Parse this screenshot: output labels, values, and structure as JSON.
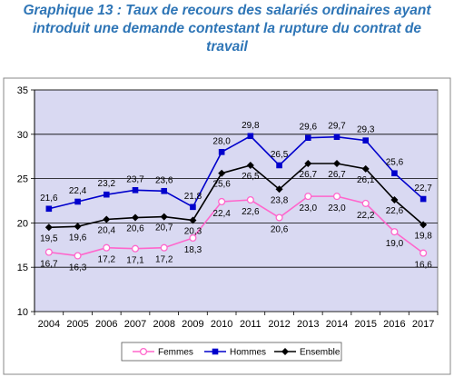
{
  "chart_data": {
    "type": "line",
    "title_lines": [
      "Graphique 13 : Taux de recours des salariés ordinaires ayant",
      "introduit une demande contestant la rupture du contrat de",
      "travail"
    ],
    "categories": [
      "2004",
      "2005",
      "2006",
      "2007",
      "2008",
      "2009",
      "2010",
      "2011",
      "2012",
      "2013",
      "2014",
      "2015",
      "2016",
      "2017"
    ],
    "ylim": [
      10,
      35
    ],
    "yticks": [
      "10",
      "15",
      "20",
      "25",
      "30",
      "35"
    ],
    "grid": true,
    "legend_position": "bottom",
    "series": [
      {
        "name": "Femmes",
        "color": "#ff66cc",
        "marker": "circle",
        "values": [
          16.7,
          16.3,
          17.2,
          17.1,
          17.2,
          18.3,
          22.4,
          22.6,
          20.6,
          23.0,
          23.0,
          22.2,
          19.0,
          16.6
        ],
        "labels": [
          "16,7",
          "16,3",
          "17,2",
          "17,1",
          "17,2",
          "18,3",
          "22,4",
          "22,6",
          "20,6",
          "23,0",
          "23,0",
          "22,2",
          "19,0",
          "16,6"
        ]
      },
      {
        "name": "Hommes",
        "color": "#0000cc",
        "marker": "square",
        "values": [
          21.6,
          22.4,
          23.2,
          23.7,
          23.6,
          21.8,
          28.0,
          29.8,
          26.5,
          29.6,
          29.7,
          29.3,
          25.6,
          22.7
        ],
        "labels": [
          "21,6",
          "22,4",
          "23,2",
          "23,7",
          "23,6",
          "21,8",
          "28,0",
          "29,8",
          "26,5",
          "29,6",
          "29,7",
          "29,3",
          "25,6",
          "22,7"
        ]
      },
      {
        "name": "Ensemble",
        "color": "#000000",
        "marker": "diamond",
        "values": [
          19.5,
          19.6,
          20.4,
          20.6,
          20.7,
          20.3,
          25.6,
          26.5,
          23.8,
          26.7,
          26.7,
          26.1,
          22.6,
          19.8
        ],
        "labels": [
          "19,5",
          "19,6",
          "20,4",
          "20,6",
          "20,7",
          "20,3",
          "25,6",
          "26,5",
          "23,8",
          "26,7",
          "26,7",
          "26,1",
          "22,6",
          "19,8"
        ]
      }
    ]
  }
}
